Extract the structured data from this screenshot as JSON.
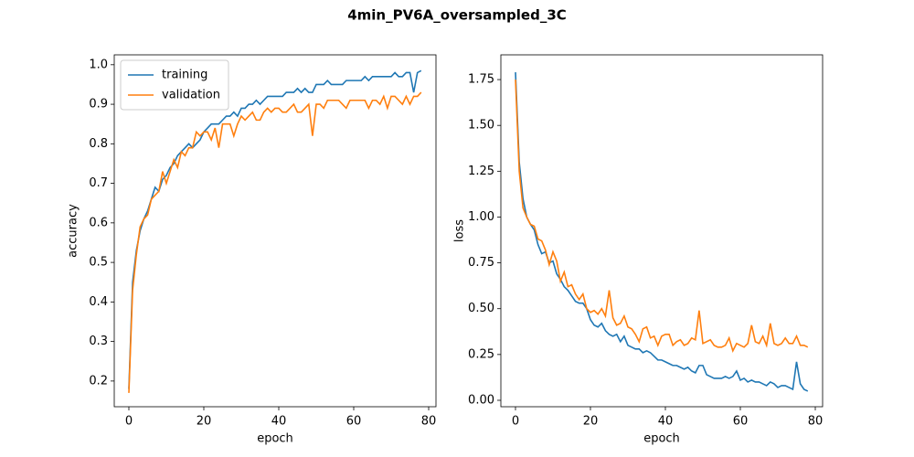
{
  "title": "4min_PV6A_oversampled_3C",
  "chart_data": [
    {
      "type": "line",
      "xlabel": "epoch",
      "ylabel": "accuracy",
      "legend": "upper left",
      "xlim": [
        -3.9,
        81.95
      ],
      "xticks": [
        0,
        20,
        40,
        60,
        80
      ],
      "ylim": [
        0.135,
        1.025
      ],
      "yticks": [
        0.2,
        0.3,
        0.4,
        0.5,
        0.6,
        0.7,
        0.8,
        0.9,
        {
          "value": 1,
          "label": "1.0"
        }
      ],
      "x": [
        0,
        1,
        2,
        3,
        4,
        5,
        6,
        7,
        8,
        9,
        10,
        11,
        12,
        13,
        14,
        15,
        16,
        17,
        18,
        19,
        20,
        21,
        22,
        23,
        24,
        25,
        26,
        27,
        28,
        29,
        30,
        31,
        32,
        33,
        34,
        35,
        36,
        37,
        38,
        39,
        40,
        41,
        42,
        43,
        44,
        45,
        46,
        47,
        48,
        49,
        50,
        51,
        52,
        53,
        54,
        55,
        56,
        57,
        58,
        59,
        60,
        61,
        62,
        63,
        64,
        65,
        66,
        67,
        68,
        69,
        70,
        71,
        72,
        73,
        74,
        75,
        76,
        77,
        78
      ],
      "series": [
        {
          "name": "training",
          "color": "#1f77b4",
          "values": [
            0.18,
            0.45,
            0.53,
            0.58,
            0.61,
            0.63,
            0.66,
            0.69,
            0.68,
            0.71,
            0.72,
            0.74,
            0.75,
            0.77,
            0.78,
            0.79,
            0.8,
            0.79,
            0.8,
            0.81,
            0.83,
            0.84,
            0.85,
            0.85,
            0.85,
            0.86,
            0.87,
            0.87,
            0.88,
            0.87,
            0.89,
            0.89,
            0.9,
            0.9,
            0.91,
            0.9,
            0.91,
            0.92,
            0.92,
            0.92,
            0.92,
            0.92,
            0.93,
            0.93,
            0.93,
            0.94,
            0.93,
            0.94,
            0.93,
            0.93,
            0.95,
            0.95,
            0.95,
            0.96,
            0.95,
            0.95,
            0.95,
            0.95,
            0.96,
            0.96,
            0.96,
            0.96,
            0.96,
            0.97,
            0.96,
            0.97,
            0.97,
            0.97,
            0.97,
            0.97,
            0.97,
            0.98,
            0.97,
            0.97,
            0.98,
            0.98,
            0.93,
            0.98,
            0.985
          ]
        },
        {
          "name": "validation",
          "color": "#ff7f0e",
          "values": [
            0.17,
            0.43,
            0.52,
            0.59,
            0.61,
            0.62,
            0.66,
            0.67,
            0.68,
            0.73,
            0.7,
            0.73,
            0.76,
            0.74,
            0.78,
            0.77,
            0.79,
            0.79,
            0.83,
            0.82,
            0.83,
            0.83,
            0.81,
            0.84,
            0.79,
            0.85,
            0.85,
            0.85,
            0.82,
            0.85,
            0.87,
            0.86,
            0.87,
            0.88,
            0.86,
            0.86,
            0.88,
            0.89,
            0.88,
            0.89,
            0.89,
            0.88,
            0.88,
            0.89,
            0.9,
            0.88,
            0.88,
            0.89,
            0.9,
            0.82,
            0.9,
            0.9,
            0.89,
            0.91,
            0.91,
            0.91,
            0.91,
            0.9,
            0.89,
            0.91,
            0.91,
            0.91,
            0.91,
            0.91,
            0.89,
            0.91,
            0.91,
            0.9,
            0.92,
            0.89,
            0.92,
            0.92,
            0.91,
            0.9,
            0.92,
            0.9,
            0.92,
            0.92,
            0.93
          ]
        }
      ]
    },
    {
      "type": "line",
      "xlabel": "epoch",
      "ylabel": "loss",
      "xlim": [
        -3.9,
        81.95
      ],
      "xticks": [
        0,
        20,
        40,
        60,
        80
      ],
      "ylim": [
        -0.035,
        1.885
      ],
      "yticks": [
        {
          "value": 0,
          "label": "0.00"
        },
        0.25,
        {
          "value": 0.5,
          "label": "0.50"
        },
        0.75,
        {
          "value": 1,
          "label": "1.00"
        },
        1.25,
        {
          "value": 1.5,
          "label": "1.50"
        },
        1.75
      ],
      "x": [
        0,
        1,
        2,
        3,
        4,
        5,
        6,
        7,
        8,
        9,
        10,
        11,
        12,
        13,
        14,
        15,
        16,
        17,
        18,
        19,
        20,
        21,
        22,
        23,
        24,
        25,
        26,
        27,
        28,
        29,
        30,
        31,
        32,
        33,
        34,
        35,
        36,
        37,
        38,
        39,
        40,
        41,
        42,
        43,
        44,
        45,
        46,
        47,
        48,
        49,
        50,
        51,
        52,
        53,
        54,
        55,
        56,
        57,
        58,
        59,
        60,
        61,
        62,
        63,
        64,
        65,
        66,
        67,
        68,
        69,
        70,
        71,
        72,
        73,
        74,
        75,
        76,
        77,
        78
      ],
      "series": [
        {
          "color": "#1f77b4",
          "values": [
            1.79,
            1.3,
            1.1,
            1.0,
            0.96,
            0.93,
            0.85,
            0.8,
            0.81,
            0.75,
            0.76,
            0.69,
            0.66,
            0.62,
            0.6,
            0.57,
            0.54,
            0.53,
            0.53,
            0.5,
            0.44,
            0.41,
            0.4,
            0.42,
            0.38,
            0.36,
            0.35,
            0.36,
            0.32,
            0.35,
            0.3,
            0.29,
            0.28,
            0.28,
            0.26,
            0.27,
            0.26,
            0.24,
            0.22,
            0.22,
            0.21,
            0.2,
            0.19,
            0.19,
            0.18,
            0.17,
            0.18,
            0.16,
            0.15,
            0.19,
            0.19,
            0.14,
            0.13,
            0.12,
            0.12,
            0.12,
            0.13,
            0.12,
            0.13,
            0.16,
            0.11,
            0.12,
            0.1,
            0.11,
            0.1,
            0.1,
            0.09,
            0.08,
            0.1,
            0.09,
            0.07,
            0.08,
            0.08,
            0.07,
            0.06,
            0.21,
            0.09,
            0.06,
            0.05
          ]
        },
        {
          "color": "#ff7f0e",
          "values": [
            1.75,
            1.25,
            1.05,
            1.0,
            0.96,
            0.95,
            0.88,
            0.87,
            0.82,
            0.74,
            0.81,
            0.76,
            0.65,
            0.7,
            0.62,
            0.63,
            0.58,
            0.55,
            0.58,
            0.5,
            0.48,
            0.49,
            0.47,
            0.5,
            0.46,
            0.6,
            0.45,
            0.41,
            0.42,
            0.46,
            0.4,
            0.39,
            0.36,
            0.32,
            0.39,
            0.4,
            0.34,
            0.35,
            0.3,
            0.35,
            0.36,
            0.36,
            0.3,
            0.32,
            0.33,
            0.3,
            0.31,
            0.34,
            0.33,
            0.49,
            0.31,
            0.32,
            0.33,
            0.3,
            0.29,
            0.29,
            0.3,
            0.34,
            0.27,
            0.31,
            0.3,
            0.29,
            0.31,
            0.41,
            0.32,
            0.31,
            0.35,
            0.3,
            0.42,
            0.31,
            0.3,
            0.31,
            0.34,
            0.31,
            0.31,
            0.35,
            0.3,
            0.3,
            0.29
          ]
        }
      ]
    }
  ]
}
